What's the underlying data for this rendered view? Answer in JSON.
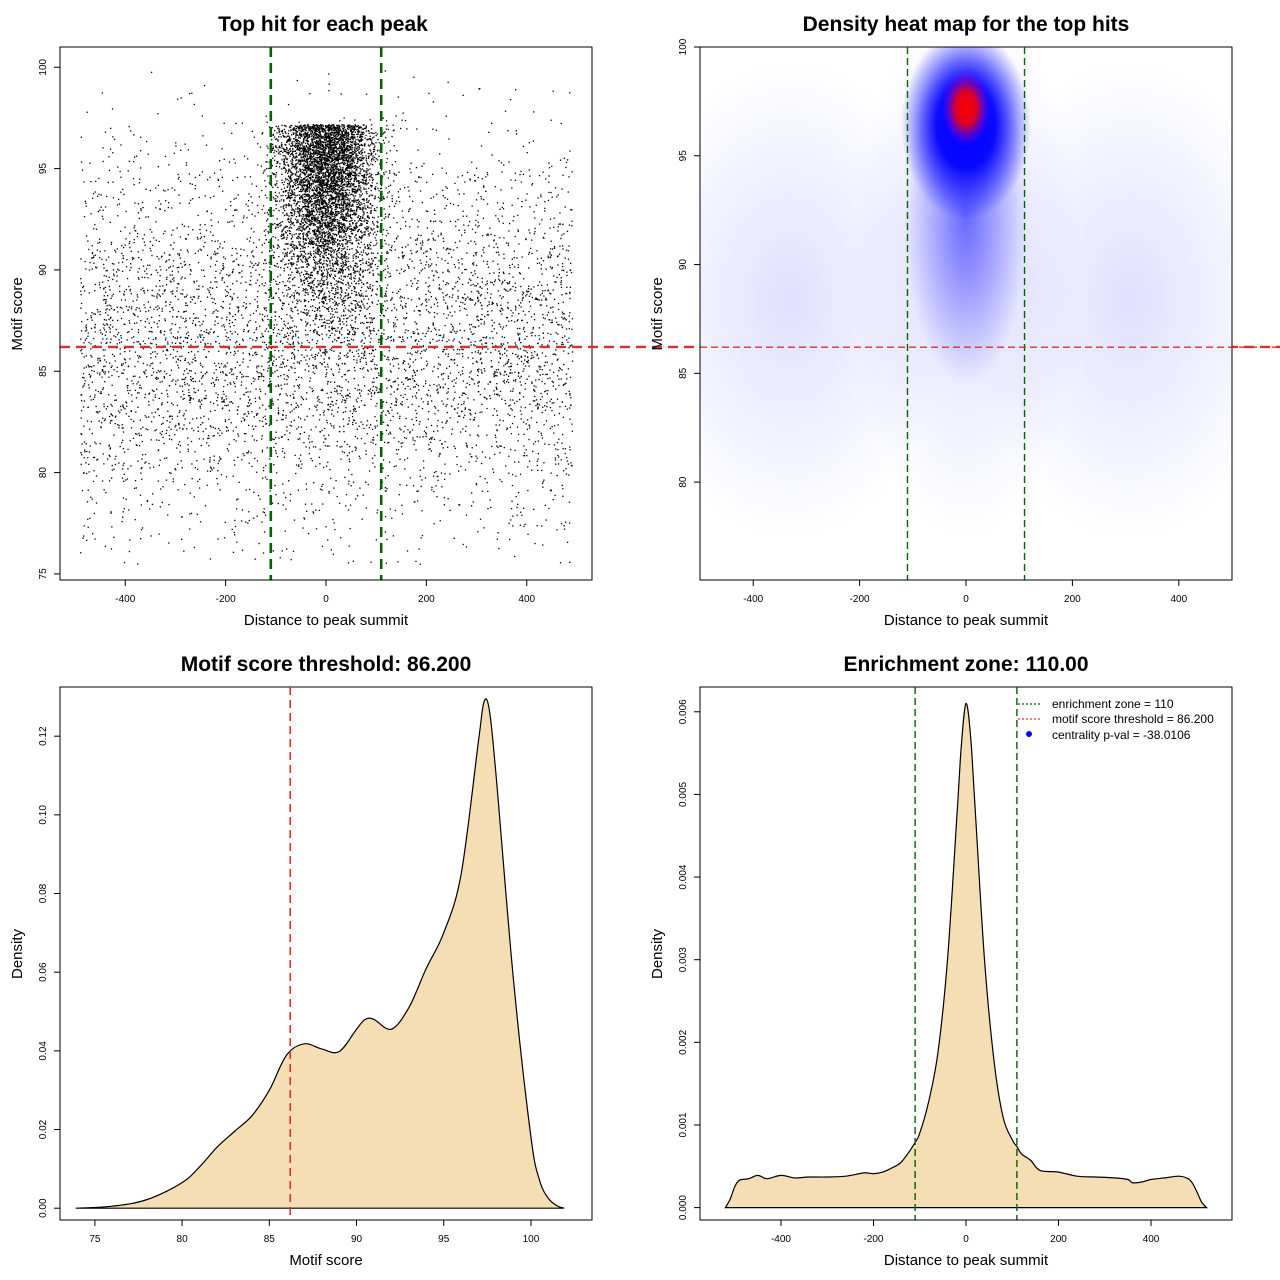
{
  "chart_data": [
    {
      "type": "scatter",
      "title": "Top hit for each peak",
      "xlabel": "Distance to peak summit",
      "ylabel": "Motif score",
      "xlim": [
        -530,
        530
      ],
      "ylim": [
        74.7,
        101.0
      ],
      "xticks": [
        -400,
        -200,
        0,
        200,
        400
      ],
      "xtick_labels": [
        "-400",
        "-200",
        "0",
        "200",
        "400"
      ],
      "yticks": [
        75,
        80,
        85,
        90,
        95,
        100
      ],
      "ytick_labels": [
        "75",
        "80",
        "85",
        "90",
        "95",
        "100"
      ],
      "vlines": [
        -110,
        110
      ],
      "vline_color": "#006400",
      "hline": 86.2,
      "hline_color": "#DF2E2E",
      "point_color": "#000000",
      "x_range": [
        -490,
        490
      ],
      "score_range": [
        75.5,
        99.9
      ],
      "approx_points": 11000
    },
    {
      "type": "heatmap",
      "title": "Density heat map for the top hits",
      "xlabel": "Distance to peak summit",
      "ylabel": "Motif score",
      "xlim": [
        -500,
        500
      ],
      "ylim": [
        75.5,
        100
      ],
      "xticks": [
        -400,
        -200,
        0,
        200,
        400
      ],
      "xtick_labels": [
        "-400",
        "-200",
        "0",
        "200",
        "400"
      ],
      "yticks": [
        80,
        85,
        90,
        95,
        100
      ],
      "ytick_labels": [
        "80",
        "85",
        "90",
        "95",
        "100"
      ],
      "vlines": [
        -110,
        110
      ],
      "vline_color": "#006400",
      "hline": 86.2,
      "hline_color": "#DF2E2E",
      "peak": {
        "x": 0,
        "y": 97.3
      },
      "colors": [
        "#ffffff",
        "#0000ff",
        "#ff0000"
      ]
    },
    {
      "type": "area",
      "title": "Motif score threshold: 86.200",
      "xlabel": "Motif score",
      "ylabel": "Density",
      "xlim": [
        73,
        103.5
      ],
      "ylim": [
        -0.003,
        0.1325
      ],
      "xticks": [
        75,
        80,
        85,
        90,
        95,
        100
      ],
      "xtick_labels": [
        "75",
        "80",
        "85",
        "90",
        "95",
        "100"
      ],
      "yticks": [
        0,
        0.02,
        0.04,
        0.06,
        0.08,
        0.1,
        0.12
      ],
      "ytick_labels": [
        "0.00",
        "0.02",
        "0.04",
        "0.06",
        "0.08",
        "0.10",
        "0.12"
      ],
      "vline": 86.2,
      "vline_color": "#DF2E2E",
      "fill": "#F5DEB3",
      "x": [
        73.9,
        76,
        78,
        80,
        81,
        82,
        83,
        84,
        85,
        86,
        87,
        88,
        89,
        90,
        90.5,
        91,
        92,
        93,
        94,
        95,
        96,
        97,
        97.3,
        97.6,
        98,
        99,
        100,
        100.5,
        101,
        101.5,
        101.9
      ],
      "y": [
        0,
        0.0005,
        0.0022,
        0.0065,
        0.0105,
        0.0155,
        0.0195,
        0.0235,
        0.03,
        0.039,
        0.0418,
        0.0405,
        0.0398,
        0.0455,
        0.048,
        0.048,
        0.0455,
        0.051,
        0.061,
        0.07,
        0.085,
        0.119,
        0.1286,
        0.127,
        0.11,
        0.058,
        0.018,
        0.007,
        0.0025,
        0.0006,
        0
      ]
    },
    {
      "type": "area",
      "title": "Enrichment zone: 110.00",
      "xlabel": "Distance to peak summit",
      "ylabel": "Density",
      "xlim": [
        -575,
        575
      ],
      "ylim": [
        -0.00015,
        0.0063
      ],
      "xticks": [
        -400,
        -200,
        0,
        200,
        400
      ],
      "xtick_labels": [
        "-400",
        "-200",
        "0",
        "200",
        "400"
      ],
      "yticks": [
        0,
        0.001,
        0.002,
        0.003,
        0.004,
        0.005,
        0.006
      ],
      "ytick_labels": [
        "0.000",
        "0.001",
        "0.002",
        "0.003",
        "0.004",
        "0.005",
        "0.006"
      ],
      "vlines": [
        -110,
        110
      ],
      "vline_color": "#006400",
      "fill": "#F5DEB3",
      "x": [
        -520,
        -510,
        -500,
        -490,
        -470,
        -450,
        -430,
        -400,
        -370,
        -340,
        -300,
        -260,
        -220,
        -200,
        -180,
        -160,
        -140,
        -120,
        -110,
        -100,
        -80,
        -60,
        -40,
        -20,
        -10,
        0,
        10,
        20,
        40,
        60,
        80,
        100,
        110,
        120,
        140,
        160,
        200,
        240,
        280,
        320,
        350,
        360,
        380,
        400,
        430,
        460,
        480,
        490,
        500,
        510,
        520
      ],
      "y": [
        0,
        0.0001,
        0.00025,
        0.00033,
        0.00035,
        0.00039,
        0.00035,
        0.00039,
        0.00036,
        0.00037,
        0.00037,
        0.00038,
        0.00042,
        0.00041,
        0.00043,
        0.00048,
        0.00055,
        0.0007,
        0.00079,
        0.0009,
        0.0013,
        0.0019,
        0.003,
        0.0047,
        0.0056,
        0.0061,
        0.0057,
        0.0048,
        0.003,
        0.0018,
        0.0011,
        0.00082,
        0.00074,
        0.00065,
        0.00057,
        0.00045,
        0.00043,
        0.00038,
        0.00037,
        0.00036,
        0.00034,
        0.0003,
        0.00031,
        0.00034,
        0.00036,
        0.00038,
        0.00035,
        0.00029,
        0.00018,
        6e-05,
        0
      ],
      "legend": {
        "position": "top-right",
        "items": [
          "enrichment zone = 110",
          "motif score threshold = 86.200",
          "centrality p-val = -38.0106"
        ],
        "colors": [
          "#006400",
          "#DF2E2E",
          "#0000ff"
        ]
      }
    }
  ]
}
